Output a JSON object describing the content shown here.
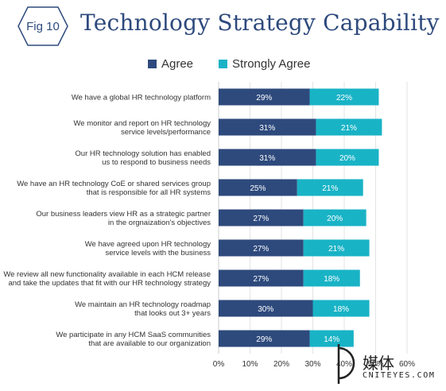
{
  "badge": {
    "text": "Fig 10"
  },
  "title": "Technology Strategy Capability",
  "legend": [
    {
      "label": "Agree",
      "color": "#2e4a7d"
    },
    {
      "label": "Strongly Agree",
      "color": "#19b3c6"
    }
  ],
  "chart_data": {
    "type": "bar",
    "orientation": "horizontal",
    "stacked": true,
    "title": "Technology Strategy Capability",
    "xlim": [
      0,
      60
    ],
    "x_ticks": [
      "0%",
      "10%",
      "20%",
      "30%",
      "40%",
      "50%",
      "60%"
    ],
    "grid": true,
    "legend_position": "top",
    "categories": [
      [
        "We have a global HR technology platform"
      ],
      [
        "We monitor and report on HR technology",
        "service levels/performance"
      ],
      [
        "Our HR technology solution has enabled",
        "us to respond to business needs"
      ],
      [
        "We have an HR technology CoE or shared services group",
        "that is responsible for all HR systems"
      ],
      [
        "Our business leaders view HR as a strategic partner",
        "in the orgnaization's objectives"
      ],
      [
        "We have agreed upon HR technology",
        "service levels with the business"
      ],
      [
        "We review all new functionality available in each HCM release",
        "and take the updates that fit with our HR technology strategy"
      ],
      [
        "We maintain an HR technology roadmap",
        "that looks out 3+ years"
      ],
      [
        "We participate in any HCM SaaS communities",
        "that are available to our organization"
      ]
    ],
    "series": [
      {
        "name": "Agree",
        "color": "#2e4a7d",
        "values": [
          29,
          31,
          31,
          25,
          27,
          27,
          27,
          30,
          29
        ]
      },
      {
        "name": "Strongly Agree",
        "color": "#19b3c6",
        "values": [
          22,
          21,
          20,
          21,
          20,
          21,
          18,
          18,
          14
        ]
      }
    ]
  },
  "watermark": {
    "text": "媒体",
    "sub": "CNITEYES.COM"
  }
}
